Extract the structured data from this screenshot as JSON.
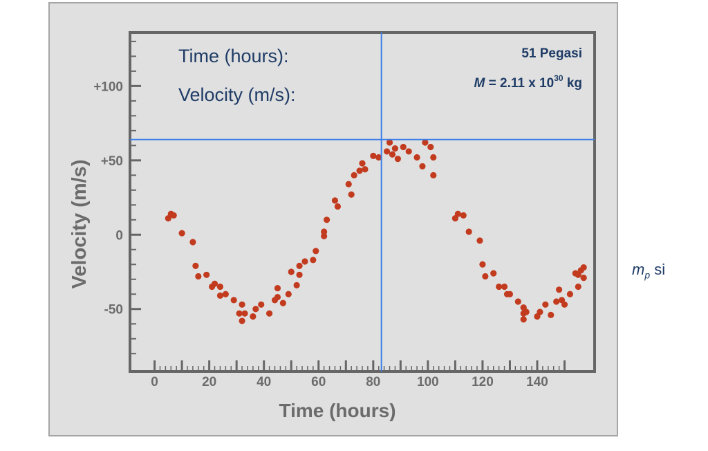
{
  "readout": {
    "time_label": "Time (hours):",
    "velocity_label": "Velocity (m/s):"
  },
  "star": {
    "name": "51 Pegasi",
    "mass_symbol": "M",
    "mass_text": " = 2.11 x 10",
    "mass_exponent": "30",
    "mass_unit": " kg"
  },
  "side_note": {
    "symbol": "m",
    "subscript": "p",
    "text": " si"
  },
  "colors": {
    "point": "#c23b1f",
    "crosshair": "#3b7de6",
    "axis": "#666666",
    "text_blue": "#1f3c66"
  },
  "crosshair": {
    "x": 83,
    "y": 64
  },
  "chart_data": {
    "type": "scatter",
    "title": "",
    "xlabel": "Time (hours)",
    "ylabel": "Velocity (m/s)",
    "xlim": [
      -9,
      161
    ],
    "ylim": [
      -92,
      136
    ],
    "x_ticks": [
      0,
      20,
      40,
      60,
      80,
      100,
      120,
      140
    ],
    "x_tick_labels": [
      "0",
      "20",
      "40",
      "60",
      "80",
      "100",
      "120",
      "140"
    ],
    "y_ticks": [
      100,
      50,
      0,
      -50
    ],
    "y_tick_labels": [
      "+100",
      "+50",
      "0",
      "-50"
    ],
    "grid": false,
    "legend": "none",
    "series": [
      {
        "points": [
          [
            5,
            11
          ],
          [
            6,
            14
          ],
          [
            7,
            13
          ],
          [
            10,
            1
          ],
          [
            14,
            -5
          ],
          [
            15,
            -21
          ],
          [
            16,
            -28
          ],
          [
            19,
            -27
          ],
          [
            21,
            -35
          ],
          [
            22,
            -33
          ],
          [
            24,
            -35
          ],
          [
            24,
            -41
          ],
          [
            26,
            -40
          ],
          [
            29,
            -44
          ],
          [
            31,
            -53
          ],
          [
            32,
            -58
          ],
          [
            32,
            -47
          ],
          [
            33,
            -53
          ],
          [
            36,
            -55
          ],
          [
            37,
            -50
          ],
          [
            39,
            -47
          ],
          [
            42,
            -53
          ],
          [
            44,
            -44
          ],
          [
            45,
            -36
          ],
          [
            45,
            -42
          ],
          [
            47,
            -46
          ],
          [
            49,
            -40
          ],
          [
            50,
            -25
          ],
          [
            52,
            -34
          ],
          [
            53,
            -21
          ],
          [
            53,
            -27
          ],
          [
            55,
            -18
          ],
          [
            58,
            -17
          ],
          [
            59,
            -11
          ],
          [
            62,
            -1
          ],
          [
            62,
            2
          ],
          [
            63,
            10
          ],
          [
            66,
            23
          ],
          [
            67,
            19
          ],
          [
            71,
            34
          ],
          [
            72,
            27
          ],
          [
            73,
            40
          ],
          [
            75,
            43
          ],
          [
            76,
            48
          ],
          [
            77,
            44
          ],
          [
            80,
            53
          ],
          [
            82,
            52
          ],
          [
            85,
            56
          ],
          [
            86,
            62
          ],
          [
            87,
            54
          ],
          [
            88,
            58
          ],
          [
            89,
            51
          ],
          [
            91,
            59
          ],
          [
            93,
            56
          ],
          [
            96,
            52
          ],
          [
            98,
            46
          ],
          [
            99,
            62
          ],
          [
            101,
            59
          ],
          [
            102,
            52
          ],
          [
            102,
            40
          ],
          [
            110,
            11
          ],
          [
            111,
            14
          ],
          [
            113,
            13
          ],
          [
            115,
            2
          ],
          [
            119,
            -4
          ],
          [
            120,
            -20
          ],
          [
            121,
            -28
          ],
          [
            124,
            -26
          ],
          [
            126,
            -35
          ],
          [
            128,
            -35
          ],
          [
            129,
            -40
          ],
          [
            130,
            -40
          ],
          [
            133,
            -45
          ],
          [
            135,
            -49
          ],
          [
            135,
            -57
          ],
          [
            135,
            -53
          ],
          [
            136,
            -52
          ],
          [
            140,
            -55
          ],
          [
            141,
            -52
          ],
          [
            143,
            -47
          ],
          [
            145,
            -54
          ],
          [
            147,
            -45
          ],
          [
            148,
            -37
          ],
          [
            149,
            -44
          ],
          [
            150,
            -47
          ],
          [
            152,
            -40
          ],
          [
            154,
            -26
          ],
          [
            155,
            -35
          ],
          [
            155,
            -27
          ],
          [
            156,
            -24
          ],
          [
            157,
            -22
          ],
          [
            157,
            -29
          ]
        ]
      }
    ]
  }
}
